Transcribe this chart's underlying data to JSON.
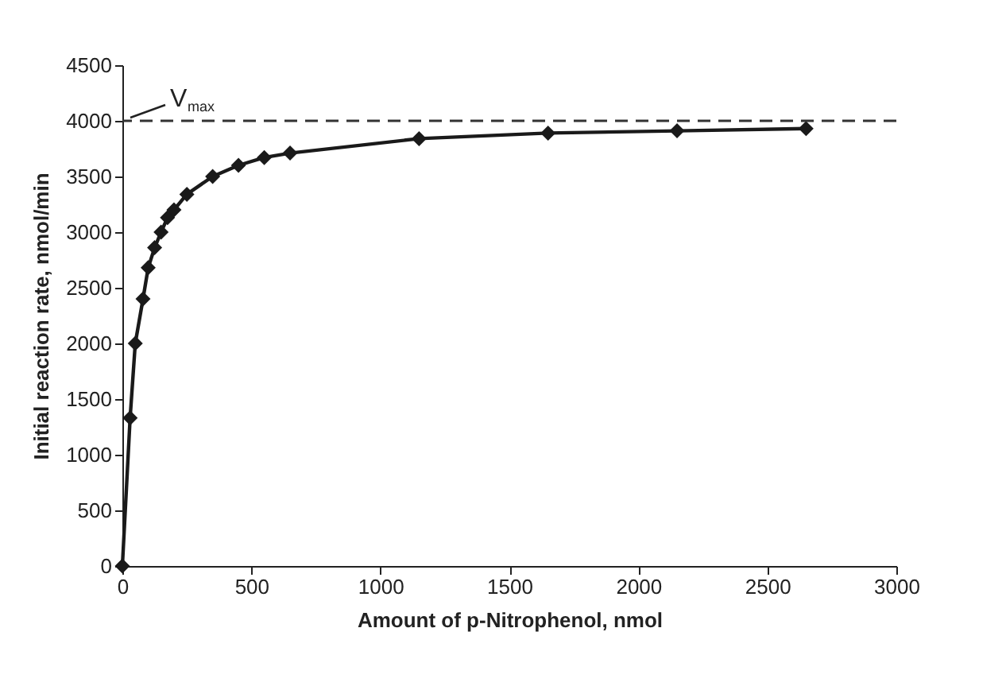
{
  "chart_data": {
    "type": "line",
    "xlabel": "Amount of p-Nitrophenol, nmol",
    "ylabel": "Initial reaction rate, nmol/min",
    "x": [
      0,
      30,
      50,
      80,
      100,
      125,
      150,
      175,
      200,
      250,
      350,
      450,
      550,
      650,
      1150,
      1650,
      2150,
      2650
    ],
    "series": [
      {
        "color": "#1a1a1a",
        "values": [
          0,
          1330,
          2000,
          2400,
          2680,
          2860,
          3000,
          3130,
          3200,
          3340,
          3500,
          3600,
          3670,
          3710,
          3840,
          3890,
          3910,
          3930
        ]
      }
    ],
    "xlim": [
      0,
      3000
    ],
    "xticks": [
      0,
      500,
      1000,
      1500,
      2000,
      2500,
      3000
    ],
    "ylim": [
      0,
      4500
    ],
    "yticks": [
      0,
      500,
      1000,
      1500,
      2000,
      2500,
      3000,
      3500,
      4000,
      4500
    ],
    "ref_lines": [
      {
        "axis": "y",
        "value": 4000,
        "label": "V$_{max}$",
        "color": "#333333",
        "line_style": "dashed"
      }
    ],
    "marker": "diamond",
    "line_style": "solid",
    "grid": false
  }
}
